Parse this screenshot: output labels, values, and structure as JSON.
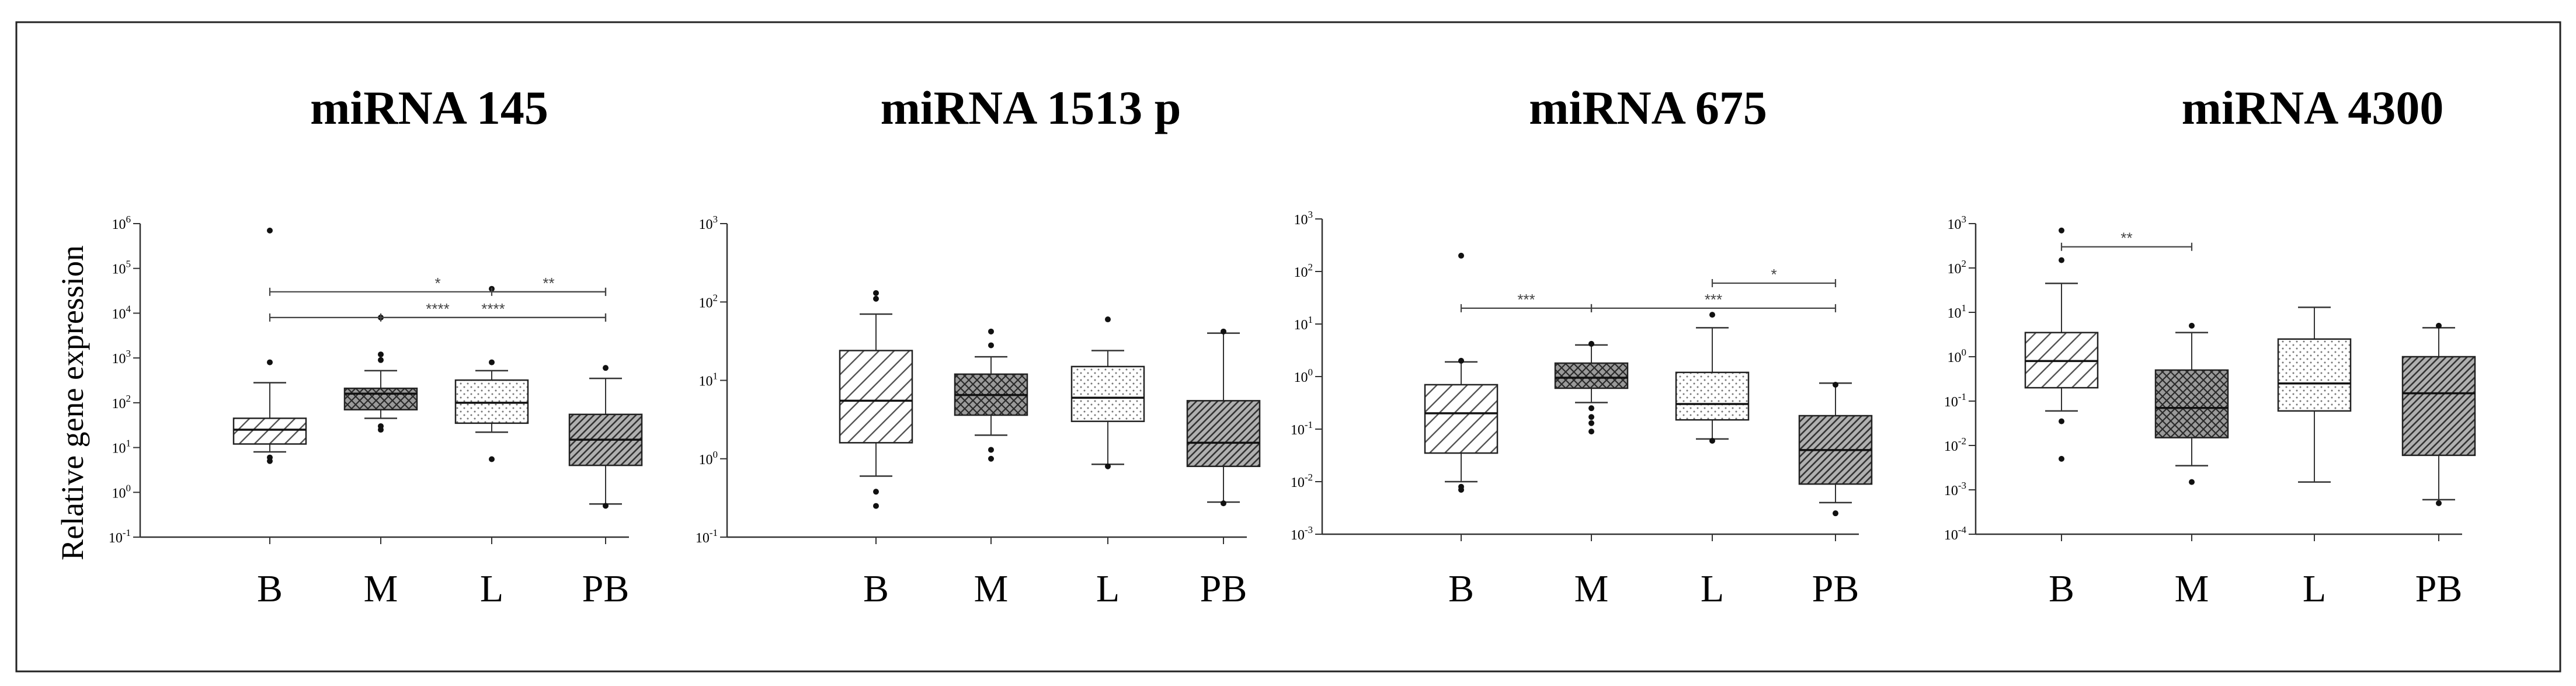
{
  "figure": {
    "ylabel": "Relative gene expression"
  },
  "chart_data": [
    {
      "type": "box",
      "title": "miRNA 145",
      "categories": [
        "B",
        "M",
        "L",
        "PB"
      ],
      "yscale": "log",
      "ylim": [
        0.1,
        1000000
      ],
      "yticks": [
        {
          "base": "10",
          "exp": "-1"
        },
        {
          "base": "10",
          "exp": "0"
        },
        {
          "base": "10",
          "exp": "1"
        },
        {
          "base": "10",
          "exp": "2"
        },
        {
          "base": "10",
          "exp": "3"
        },
        {
          "base": "10",
          "exp": "4"
        },
        {
          "base": "10",
          "exp": "5"
        },
        {
          "base": "10",
          "exp": "6"
        }
      ],
      "boxes": [
        {
          "category": "B",
          "whislo": 8,
          "q1": 12,
          "med": 25,
          "q3": 45,
          "whishi": 280,
          "fliers": [
            5,
            6,
            800,
            700000
          ],
          "pattern": "diag-light"
        },
        {
          "category": "M",
          "whislo": 45,
          "q1": 70,
          "med": 160,
          "q3": 210,
          "whishi": 520,
          "fliers": [
            25,
            30,
            900,
            1200,
            8000
          ],
          "pattern": "dark-cross"
        },
        {
          "category": "L",
          "whislo": 22,
          "q1": 35,
          "med": 100,
          "q3": 320,
          "whishi": 520,
          "fliers": [
            5.5,
            800,
            35000
          ],
          "pattern": "dots"
        },
        {
          "category": "PB",
          "whislo": 0.55,
          "q1": 4,
          "med": 15,
          "q3": 55,
          "whishi": 350,
          "fliers": [
            0.5,
            600
          ],
          "pattern": "diag-dense"
        }
      ],
      "comparisons": [
        {
          "from": "B",
          "to": "PB",
          "y": 30000,
          "label": "*"
        },
        {
          "from": "L",
          "to": "PB",
          "y": 30000,
          "label": "**"
        },
        {
          "from": "B",
          "to": "PB",
          "y": 8000,
          "label": "****"
        },
        {
          "from": "M",
          "to": "PB",
          "y": 8000,
          "label": "****"
        }
      ]
    },
    {
      "type": "box",
      "title": "miRNA 1513 p",
      "categories": [
        "B",
        "M",
        "L",
        "PB"
      ],
      "yscale": "log",
      "ylim": [
        0.1,
        1000
      ],
      "yticks": [
        {
          "base": "10",
          "exp": "-1"
        },
        {
          "base": "10",
          "exp": "0"
        },
        {
          "base": "10",
          "exp": "1"
        },
        {
          "base": "10",
          "exp": "2"
        },
        {
          "base": "10",
          "exp": "3"
        }
      ],
      "boxes": [
        {
          "category": "B",
          "whislo": 0.6,
          "q1": 1.6,
          "med": 5.5,
          "q3": 24,
          "whishi": 70,
          "fliers": [
            0.25,
            0.38,
            110,
            130
          ],
          "pattern": "diag-light"
        },
        {
          "category": "M",
          "whislo": 2.0,
          "q1": 3.6,
          "med": 6.5,
          "q3": 12,
          "whishi": 20,
          "fliers": [
            1.0,
            1.3,
            28,
            42
          ],
          "pattern": "dark-cross"
        },
        {
          "category": "L",
          "whislo": 0.85,
          "q1": 3.0,
          "med": 6.0,
          "q3": 15,
          "whishi": 24,
          "fliers": [
            0.8,
            60
          ],
          "pattern": "dots"
        },
        {
          "category": "PB",
          "whislo": 0.28,
          "q1": 0.8,
          "med": 1.6,
          "q3": 5.5,
          "whishi": 40,
          "fliers": [
            0.27,
            42
          ],
          "pattern": "diag-dense"
        }
      ],
      "comparisons": []
    },
    {
      "type": "box",
      "title": "miRNA 675",
      "categories": [
        "B",
        "M",
        "L",
        "PB"
      ],
      "yscale": "log",
      "ylim": [
        0.001,
        1000
      ],
      "yticks": [
        {
          "base": "10",
          "exp": "-3"
        },
        {
          "base": "10",
          "exp": "-2"
        },
        {
          "base": "10",
          "exp": "-1"
        },
        {
          "base": "10",
          "exp": "0"
        },
        {
          "base": "10",
          "exp": "1"
        },
        {
          "base": "10",
          "exp": "2"
        },
        {
          "base": "10",
          "exp": "3"
        }
      ],
      "boxes": [
        {
          "category": "B",
          "whislo": 0.01,
          "q1": 0.035,
          "med": 0.2,
          "q3": 0.7,
          "whishi": 1.9,
          "fliers": [
            0.007,
            0.008,
            2.0,
            200
          ],
          "pattern": "diag-light"
        },
        {
          "category": "M",
          "whislo": 0.32,
          "q1": 0.6,
          "med": 0.95,
          "q3": 1.8,
          "whishi": 4.0,
          "fliers": [
            0.09,
            0.13,
            0.17,
            0.25,
            4.2
          ],
          "pattern": "dark-cross"
        },
        {
          "category": "L",
          "whislo": 0.065,
          "q1": 0.15,
          "med": 0.3,
          "q3": 1.2,
          "whishi": 8.5,
          "fliers": [
            0.06,
            15
          ],
          "pattern": "dots"
        },
        {
          "category": "PB",
          "whislo": 0.004,
          "q1": 0.009,
          "med": 0.04,
          "q3": 0.18,
          "whishi": 0.75,
          "fliers": [
            0.0025,
            0.7
          ],
          "pattern": "diag-dense"
        }
      ],
      "comparisons": [
        {
          "from": "L",
          "to": "PB",
          "y": 60,
          "label": "*"
        },
        {
          "from": "B",
          "to": "M",
          "y": 20,
          "label": "***"
        },
        {
          "from": "M",
          "to": "PB",
          "y": 20,
          "label": "***"
        }
      ]
    },
    {
      "type": "box",
      "title": "miRNA 4300",
      "categories": [
        "B",
        "M",
        "L",
        "PB"
      ],
      "yscale": "log",
      "ylim": [
        0.0001,
        1000
      ],
      "yticks": [
        {
          "base": "10",
          "exp": "-4"
        },
        {
          "base": "10",
          "exp": "-3"
        },
        {
          "base": "10",
          "exp": "-2"
        },
        {
          "base": "10",
          "exp": "-1"
        },
        {
          "base": "10",
          "exp": "0"
        },
        {
          "base": "10",
          "exp": "1"
        },
        {
          "base": "10",
          "exp": "2"
        },
        {
          "base": "10",
          "exp": "3"
        }
      ],
      "boxes": [
        {
          "category": "B",
          "whislo": 0.06,
          "q1": 0.2,
          "med": 0.8,
          "q3": 3.5,
          "whishi": 45,
          "fliers": [
            0.005,
            0.035,
            150,
            700
          ],
          "pattern": "diag-light"
        },
        {
          "category": "M",
          "whislo": 0.0035,
          "q1": 0.015,
          "med": 0.07,
          "q3": 0.5,
          "whishi": 3.5,
          "fliers": [
            0.0015,
            5
          ],
          "pattern": "dark-cross"
        },
        {
          "category": "L",
          "whislo": 0.0015,
          "q1": 0.06,
          "med": 0.25,
          "q3": 2.5,
          "whishi": 13,
          "fliers": [],
          "pattern": "dots"
        },
        {
          "category": "PB",
          "whislo": 0.0006,
          "q1": 0.006,
          "med": 0.15,
          "q3": 1.0,
          "whishi": 4.5,
          "fliers": [
            0.0005,
            5
          ],
          "pattern": "diag-dense"
        }
      ],
      "comparisons": [
        {
          "from": "B",
          "to": "M",
          "y": 300,
          "label": "**"
        }
      ]
    }
  ]
}
